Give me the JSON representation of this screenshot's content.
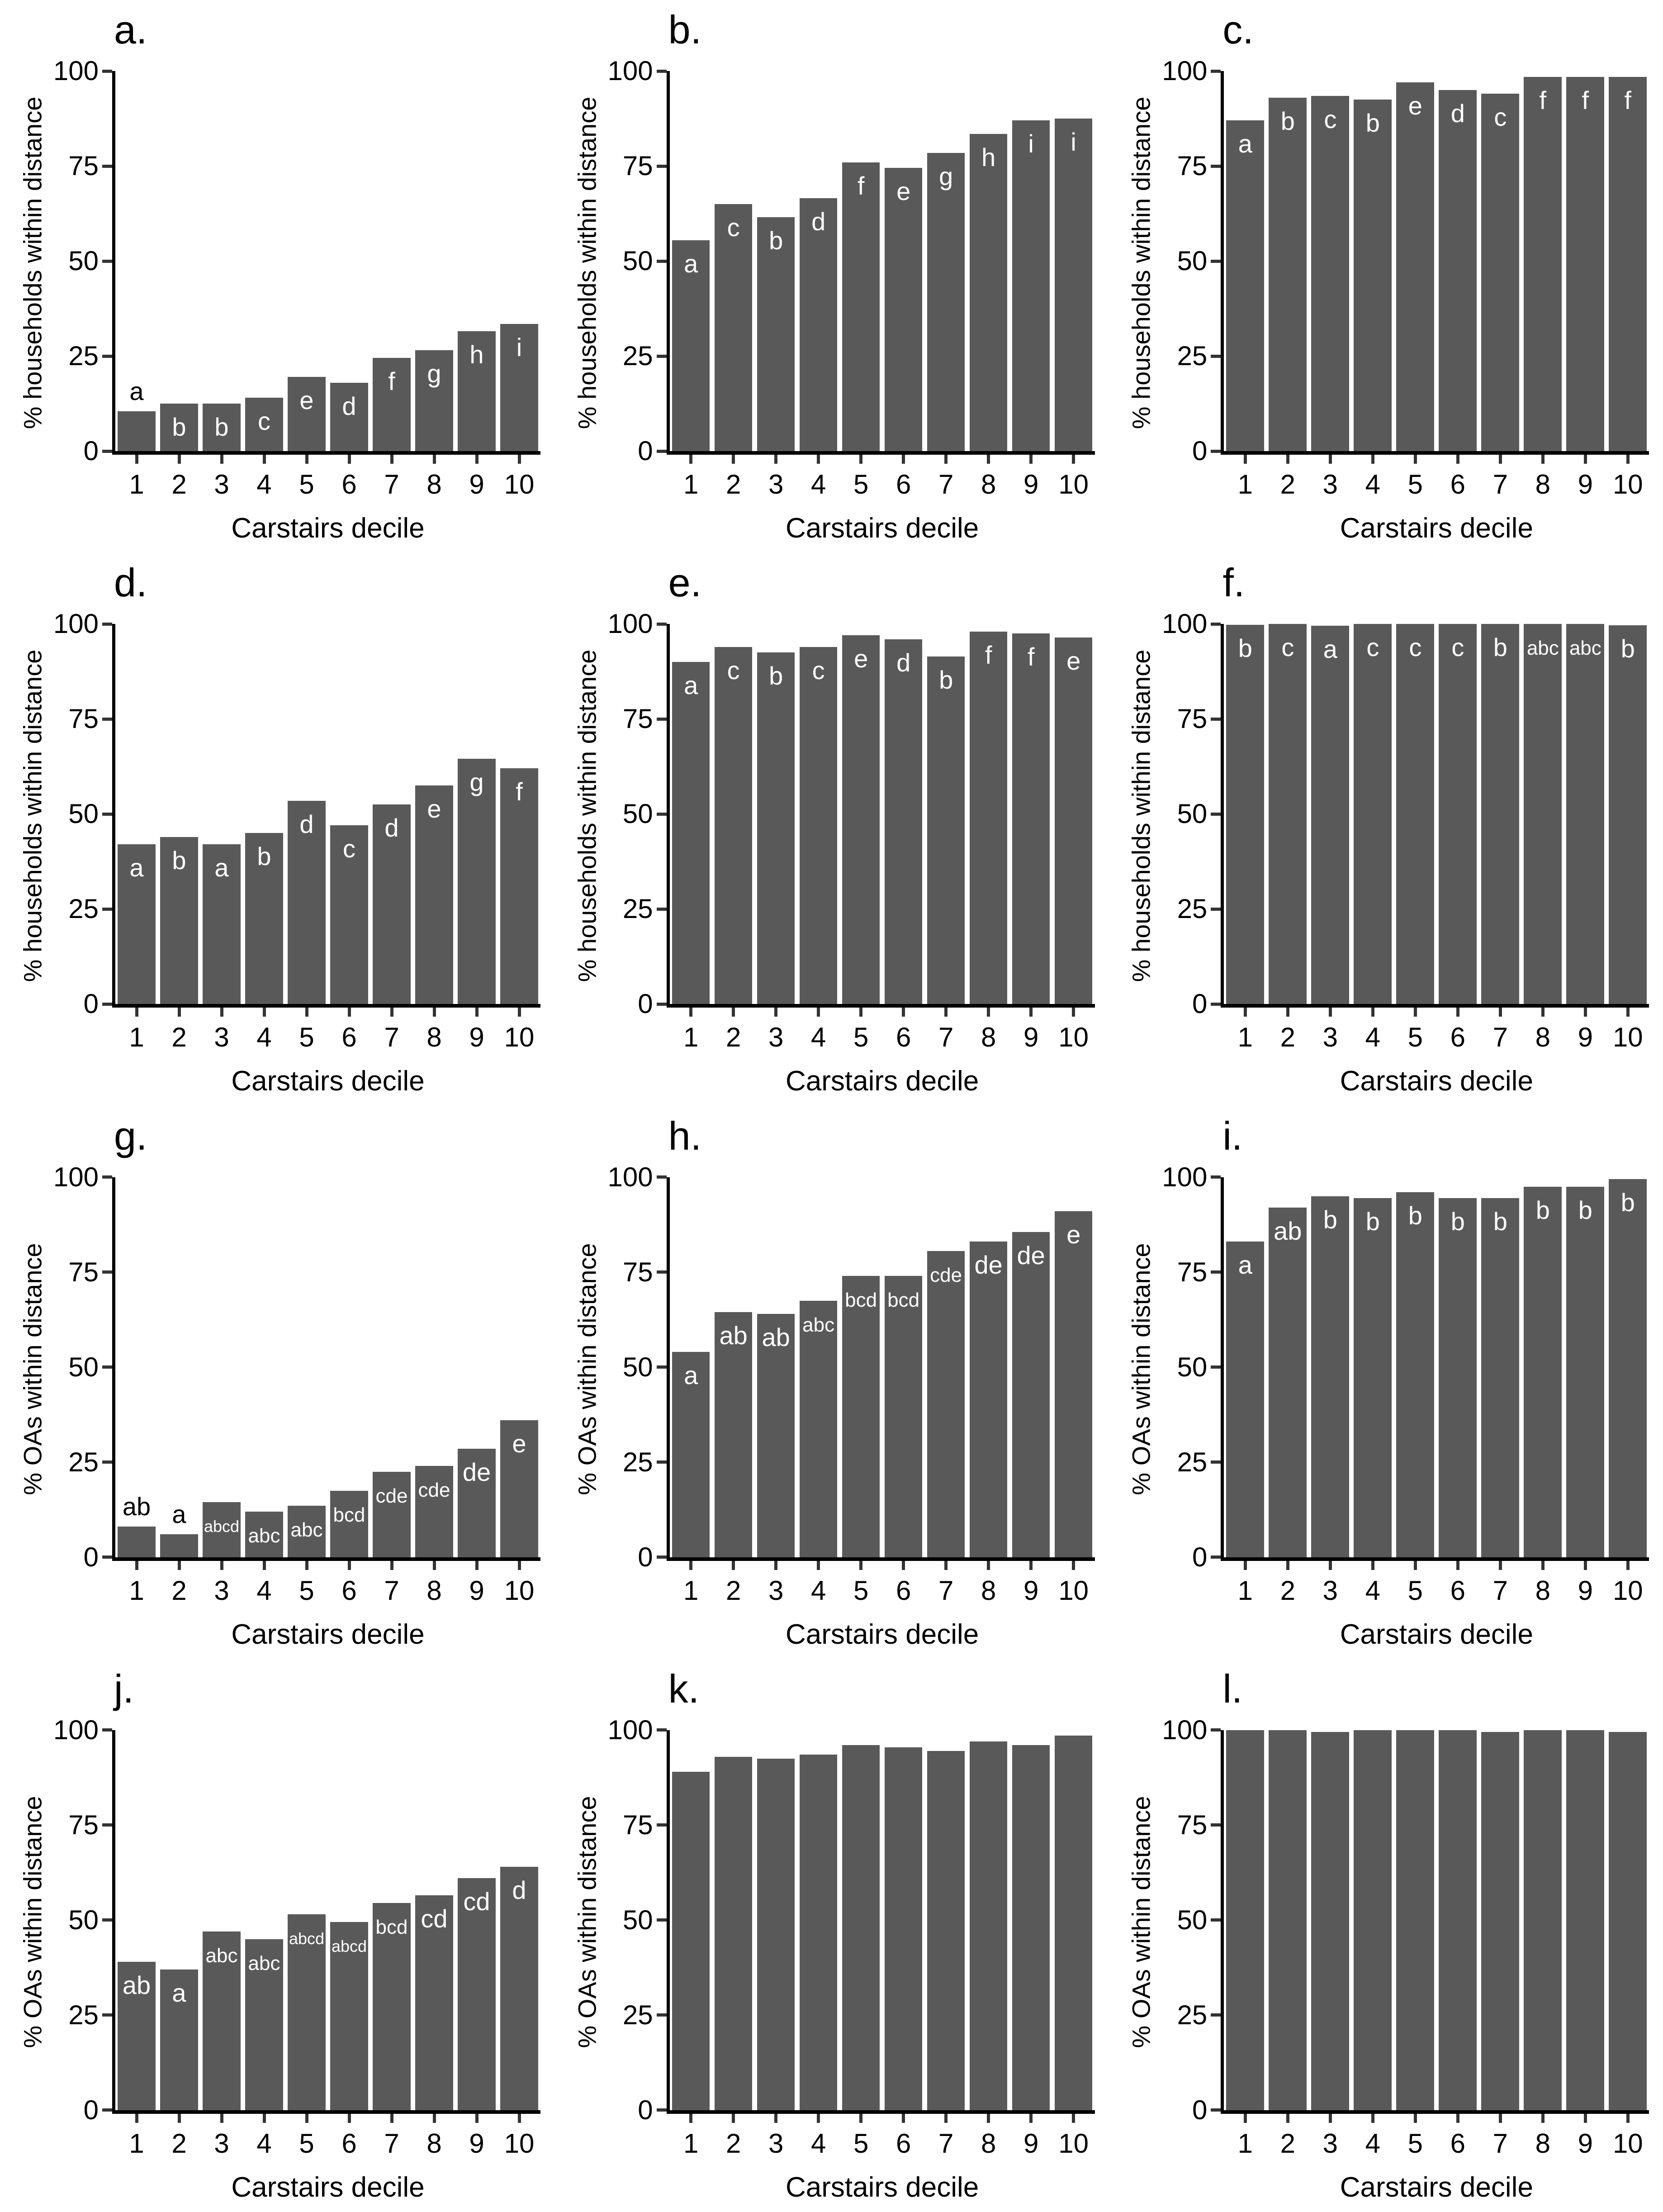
{
  "figure": {
    "bar_color": "#595959",
    "axis_color": "#000000",
    "tick_color": "#333333",
    "sig_letter_color_inside": "#ffffff",
    "sig_letter_color_above": "#000000",
    "xlabel": "Carstairs decile",
    "y_ticks": [
      0,
      25,
      50,
      75,
      100
    ],
    "ylim": [
      0,
      100
    ]
  },
  "chart_data": [
    {
      "type": "bar",
      "panel_id": "a",
      "title": "a.",
      "ylabel": "% households within distance",
      "xlabel": "Carstairs decile",
      "ylim": [
        0,
        100
      ],
      "y_ticks": [
        0,
        25,
        50,
        75,
        100
      ],
      "categories": [
        "1",
        "2",
        "3",
        "4",
        "5",
        "6",
        "7",
        "8",
        "9",
        "10"
      ],
      "values": [
        10.5,
        12.5,
        12.5,
        14,
        19.5,
        18,
        24.5,
        26.5,
        31.5,
        33.5
      ],
      "sig_letters": [
        "a",
        "b",
        "b",
        "c",
        "e",
        "d",
        "f",
        "g",
        "h",
        "i"
      ]
    },
    {
      "type": "bar",
      "panel_id": "b",
      "title": "b.",
      "ylabel": "% households within distance",
      "xlabel": "Carstairs decile",
      "ylim": [
        0,
        100
      ],
      "y_ticks": [
        0,
        25,
        50,
        75,
        100
      ],
      "categories": [
        "1",
        "2",
        "3",
        "4",
        "5",
        "6",
        "7",
        "8",
        "9",
        "10"
      ],
      "values": [
        55.5,
        65,
        61.5,
        66.5,
        76,
        74.5,
        78.5,
        83.5,
        87,
        87.5
      ],
      "sig_letters": [
        "a",
        "c",
        "b",
        "d",
        "f",
        "e",
        "g",
        "h",
        "i",
        "i"
      ]
    },
    {
      "type": "bar",
      "panel_id": "c",
      "title": "c.",
      "ylabel": "% households within distance",
      "xlabel": "Carstairs decile",
      "ylim": [
        0,
        100
      ],
      "y_ticks": [
        0,
        25,
        50,
        75,
        100
      ],
      "categories": [
        "1",
        "2",
        "3",
        "4",
        "5",
        "6",
        "7",
        "8",
        "9",
        "10"
      ],
      "values": [
        87,
        93,
        93.5,
        92.5,
        97,
        95,
        94,
        98.5,
        98.5,
        98.5
      ],
      "sig_letters": [
        "a",
        "b",
        "c",
        "b",
        "e",
        "d",
        "c",
        "f",
        "f",
        "f"
      ]
    },
    {
      "type": "bar",
      "panel_id": "d",
      "title": "d.",
      "ylabel": "% households within distance",
      "xlabel": "Carstairs decile",
      "ylim": [
        0,
        100
      ],
      "y_ticks": [
        0,
        25,
        50,
        75,
        100
      ],
      "categories": [
        "1",
        "2",
        "3",
        "4",
        "5",
        "6",
        "7",
        "8",
        "9",
        "10"
      ],
      "values": [
        42,
        44,
        42,
        45,
        53.5,
        47,
        52.5,
        57.5,
        64.5,
        62
      ],
      "sig_letters": [
        "a",
        "b",
        "a",
        "b",
        "d",
        "c",
        "d",
        "e",
        "g",
        "f"
      ]
    },
    {
      "type": "bar",
      "panel_id": "e",
      "title": "e.",
      "ylabel": "% households within distance",
      "xlabel": "Carstairs decile",
      "ylim": [
        0,
        100
      ],
      "y_ticks": [
        0,
        25,
        50,
        75,
        100
      ],
      "categories": [
        "1",
        "2",
        "3",
        "4",
        "5",
        "6",
        "7",
        "8",
        "9",
        "10"
      ],
      "values": [
        90,
        94,
        92.5,
        94,
        97,
        96,
        91.5,
        98,
        97.5,
        96.5
      ],
      "sig_letters": [
        "a",
        "c",
        "b",
        "c",
        "e",
        "d",
        "b",
        "f",
        "f",
        "e"
      ]
    },
    {
      "type": "bar",
      "panel_id": "f",
      "title": "f.",
      "ylabel": "% households within distance",
      "xlabel": "Carstairs decile",
      "ylim": [
        0,
        100
      ],
      "y_ticks": [
        0,
        25,
        50,
        75,
        100
      ],
      "categories": [
        "1",
        "2",
        "3",
        "4",
        "5",
        "6",
        "7",
        "8",
        "9",
        "10"
      ],
      "values": [
        99.8,
        100,
        99.5,
        100,
        100,
        100,
        100,
        100,
        100,
        99.7
      ],
      "sig_letters": [
        "b",
        "c",
        "a",
        "c",
        "c",
        "c",
        "b",
        "abc",
        "abc",
        "b"
      ]
    },
    {
      "type": "bar",
      "panel_id": "g",
      "title": "g.",
      "ylabel": "% OAs within distance",
      "xlabel": "Carstairs decile",
      "ylim": [
        0,
        100
      ],
      "y_ticks": [
        0,
        25,
        50,
        75,
        100
      ],
      "categories": [
        "1",
        "2",
        "3",
        "4",
        "5",
        "6",
        "7",
        "8",
        "9",
        "10"
      ],
      "values": [
        8,
        6,
        14.5,
        12,
        13.5,
        17.5,
        22.5,
        24,
        28.5,
        36
      ],
      "sig_letters": [
        "ab",
        "a",
        "abcd",
        "abc",
        "abc",
        "bcd",
        "cde",
        "cde",
        "de",
        "e"
      ]
    },
    {
      "type": "bar",
      "panel_id": "h",
      "title": "h.",
      "ylabel": "% OAs within distance",
      "xlabel": "Carstairs decile",
      "ylim": [
        0,
        100
      ],
      "y_ticks": [
        0,
        25,
        50,
        75,
        100
      ],
      "categories": [
        "1",
        "2",
        "3",
        "4",
        "5",
        "6",
        "7",
        "8",
        "9",
        "10"
      ],
      "values": [
        54,
        64.5,
        64,
        67.5,
        74,
        74,
        80.5,
        83,
        85.5,
        91
      ],
      "sig_letters": [
        "a",
        "ab",
        "ab",
        "abc",
        "bcd",
        "bcd",
        "cde",
        "de",
        "de",
        "e"
      ]
    },
    {
      "type": "bar",
      "panel_id": "i",
      "title": "i.",
      "ylabel": "% OAs within distance",
      "xlabel": "Carstairs decile",
      "ylim": [
        0,
        100
      ],
      "y_ticks": [
        0,
        25,
        50,
        75,
        100
      ],
      "categories": [
        "1",
        "2",
        "3",
        "4",
        "5",
        "6",
        "7",
        "8",
        "9",
        "10"
      ],
      "values": [
        83,
        92,
        95,
        94.5,
        96,
        94.5,
        94.5,
        97.5,
        97.5,
        99.5
      ],
      "sig_letters": [
        "a",
        "ab",
        "b",
        "b",
        "b",
        "b",
        "b",
        "b",
        "b",
        "b"
      ]
    },
    {
      "type": "bar",
      "panel_id": "j",
      "title": "j.",
      "ylabel": "% OAs within distance",
      "xlabel": "Carstairs decile",
      "ylim": [
        0,
        100
      ],
      "y_ticks": [
        0,
        25,
        50,
        75,
        100
      ],
      "categories": [
        "1",
        "2",
        "3",
        "4",
        "5",
        "6",
        "7",
        "8",
        "9",
        "10"
      ],
      "values": [
        39,
        37,
        47,
        45,
        51.5,
        49.5,
        54.5,
        56.5,
        61,
        64
      ],
      "sig_letters": [
        "ab",
        "a",
        "abc",
        "abc",
        "abcd",
        "abcd",
        "bcd",
        "cd",
        "cd",
        "d"
      ]
    },
    {
      "type": "bar",
      "panel_id": "k",
      "title": "k.",
      "ylabel": "% OAs within distance",
      "xlabel": "Carstairs decile",
      "ylim": [
        0,
        100
      ],
      "y_ticks": [
        0,
        25,
        50,
        75,
        100
      ],
      "categories": [
        "1",
        "2",
        "3",
        "4",
        "5",
        "6",
        "7",
        "8",
        "9",
        "10"
      ],
      "values": [
        89,
        93,
        92.5,
        93.5,
        96,
        95.5,
        94.5,
        97,
        96,
        98.5
      ],
      "sig_letters": [
        "",
        "",
        "",
        "",
        "",
        "",
        "",
        "",
        "",
        ""
      ]
    },
    {
      "type": "bar",
      "panel_id": "l",
      "title": "l.",
      "ylabel": "% OAs within distance",
      "xlabel": "Carstairs decile",
      "ylim": [
        0,
        100
      ],
      "y_ticks": [
        0,
        25,
        50,
        75,
        100
      ],
      "categories": [
        "1",
        "2",
        "3",
        "4",
        "5",
        "6",
        "7",
        "8",
        "9",
        "10"
      ],
      "values": [
        100,
        100,
        99.5,
        100,
        100,
        100,
        99.5,
        100,
        100,
        99.5
      ],
      "sig_letters": [
        "",
        "",
        "",
        "",
        "",
        "",
        "",
        "",
        "",
        ""
      ]
    }
  ]
}
